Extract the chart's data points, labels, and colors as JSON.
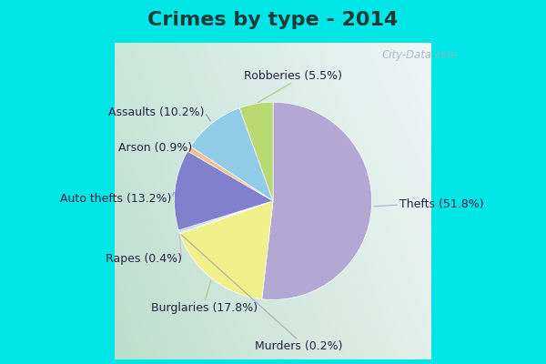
{
  "title": "Crimes by type - 2014",
  "title_fontsize": 16,
  "title_fontweight": "bold",
  "labels": [
    "Thefts",
    "Burglaries",
    "Murders",
    "Rapes",
    "Auto thefts",
    "Arson",
    "Assaults",
    "Robberies"
  ],
  "values": [
    51.8,
    17.8,
    0.2,
    0.4,
    13.2,
    0.9,
    10.2,
    5.5
  ],
  "colors": [
    "#b3a8d4",
    "#f0f08a",
    "#f0b8b8",
    "#b8d8f4",
    "#8080cc",
    "#f4c090",
    "#90cce8",
    "#b8d870"
  ],
  "bg_cyan": "#00e5e5",
  "bg_inner_color1": "#c8e8d8",
  "bg_inner_color2": "#e8f4f0",
  "watermark": "City-Data.com",
  "label_fontsize": 9,
  "startangle": 90,
  "title_color": "#1a3a3a"
}
